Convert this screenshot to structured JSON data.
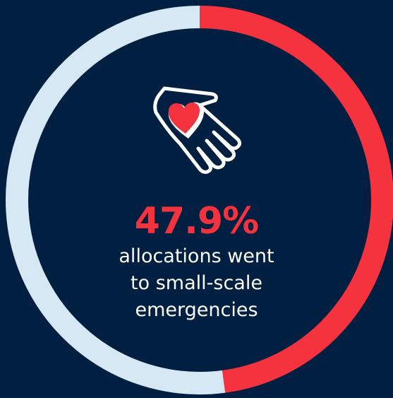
{
  "colors": {
    "background": "#011f40",
    "accent": "#f5333f",
    "track": "#d6e8f4",
    "text": "#ffffff"
  },
  "icon": "hand-holding-heart-icon",
  "chart_data": {
    "type": "pie",
    "style": "donut",
    "values": [
      47.9,
      52.1
    ],
    "value_label": "47.9%",
    "caption_lines": [
      "allocations went",
      "to small-scale",
      "emergencies"
    ]
  }
}
